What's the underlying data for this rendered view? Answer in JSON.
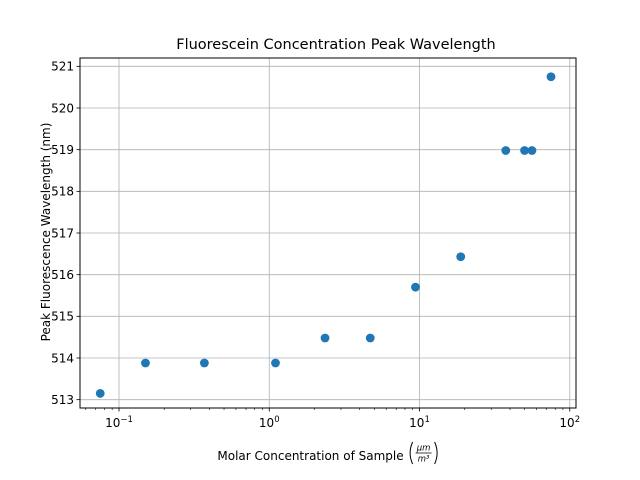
{
  "chart_data": {
    "type": "scatter",
    "title": "Fluorescein Concentration Peak Wavelength",
    "xlabel": "Molar Concentration of Sample",
    "xlabel_unit": {
      "numerator": "μm",
      "denominator": "m³"
    },
    "ylabel": "Peak Fluorescence Wavelength (nm)",
    "xscale": "log",
    "xlim": [
      0.055,
      110
    ],
    "ylim": [
      512.8,
      521.2
    ],
    "xticks": [
      {
        "value": 0.1,
        "base": "10",
        "exp": "−1"
      },
      {
        "value": 1,
        "base": "10",
        "exp": "0"
      },
      {
        "value": 10,
        "base": "10",
        "exp": "1"
      },
      {
        "value": 100,
        "base": "10",
        "exp": "2"
      }
    ],
    "yticks": [
      "513",
      "514",
      "515",
      "516",
      "517",
      "518",
      "519",
      "520",
      "521"
    ],
    "grid": true,
    "marker_color": "#1f77b4",
    "series": [
      {
        "x": [
          0.075,
          0.15,
          0.37,
          1.1,
          2.35,
          4.7,
          9.4,
          18.8,
          37.5,
          50,
          56,
          75
        ],
        "y": [
          513.15,
          513.88,
          513.88,
          513.88,
          514.48,
          514.48,
          515.7,
          516.43,
          518.98,
          518.98,
          518.98,
          520.75
        ]
      }
    ]
  }
}
